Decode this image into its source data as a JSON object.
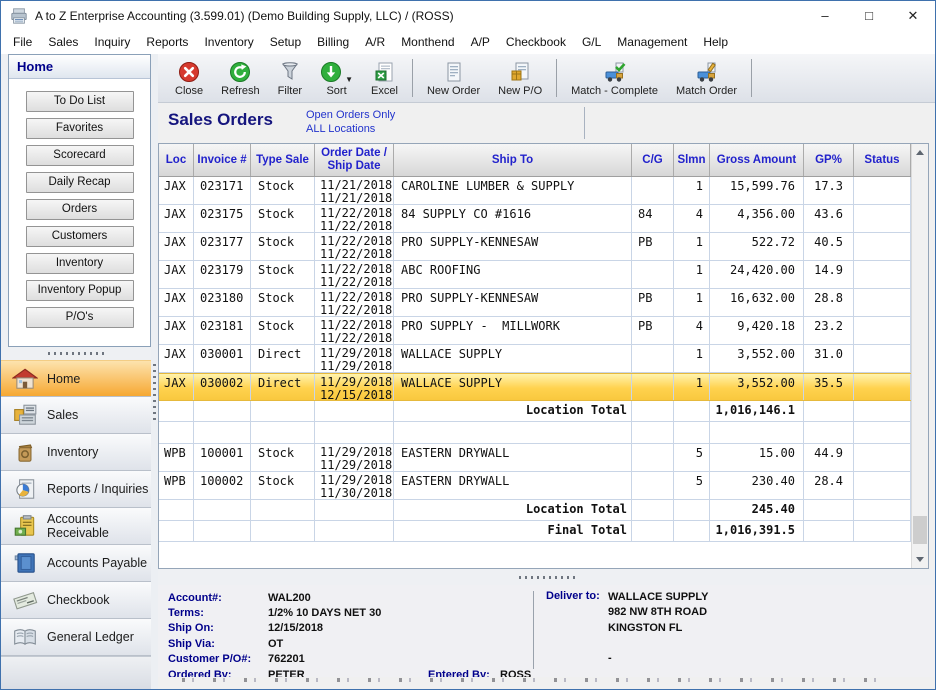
{
  "window": {
    "title": "A to Z Enterprise Accounting (3.599.01) (Demo Building Supply, LLC) / (ROSS)",
    "controls": {
      "minimize": "–",
      "maximize": "□",
      "close": "✕"
    }
  },
  "menubar": {
    "items": [
      "File",
      "Sales",
      "Inquiry",
      "Reports",
      "Inventory",
      "Setup",
      "Billing",
      "A/R",
      "Monthend",
      "A/P",
      "Checkbook",
      "G/L",
      "Management",
      "Help"
    ]
  },
  "toolbar": {
    "groups": [
      [
        {
          "label": "Close",
          "icon": "close-icon"
        },
        {
          "label": "Refresh",
          "icon": "refresh-icon"
        },
        {
          "label": "Filter",
          "icon": "filter-icon"
        },
        {
          "label": "Sort",
          "icon": "sort-icon",
          "dropdown": true
        },
        {
          "label": "Excel",
          "icon": "excel-icon"
        }
      ],
      [
        {
          "label": "New Order",
          "icon": "new-order-icon"
        },
        {
          "label": "New P/O",
          "icon": "new-po-icon"
        }
      ],
      [
        {
          "label": "Match - Complete",
          "icon": "match-complete-icon"
        },
        {
          "label": "Match Order",
          "icon": "match-order-icon"
        }
      ]
    ]
  },
  "sidebar": {
    "panel_title": "Home",
    "quick_buttons": [
      "To Do List",
      "Favorites",
      "Scorecard",
      "Daily Recap",
      "Orders",
      "Customers",
      "Inventory",
      "Inventory Popup",
      "P/O's"
    ],
    "nav_items": [
      {
        "label": "Home",
        "icon": "home-icon",
        "selected": true
      },
      {
        "label": "Sales",
        "icon": "sales-icon",
        "selected": false
      },
      {
        "label": "Inventory",
        "icon": "inventory-icon",
        "selected": false
      },
      {
        "label": "Reports / Inquiries",
        "icon": "reports-icon",
        "selected": false
      },
      {
        "label": "Accounts Receivable",
        "icon": "accounts-receivable-icon",
        "selected": false
      },
      {
        "label": "Accounts Payable",
        "icon": "accounts-payable-icon",
        "selected": false
      },
      {
        "label": "Checkbook",
        "icon": "checkbook-icon",
        "selected": false
      },
      {
        "label": "General Ledger",
        "icon": "general-ledger-icon",
        "selected": false
      }
    ]
  },
  "page": {
    "title": "Sales Orders",
    "filter_links": [
      "Open Orders Only",
      "ALL Locations"
    ]
  },
  "table": {
    "columns": [
      "Loc",
      "Invoice #",
      "Type Sale",
      "Order Date /\nShip Date",
      "Ship To",
      "C/G",
      "Slmn",
      "Gross Amount",
      "GP%",
      "Status"
    ],
    "rows": [
      {
        "type": "data",
        "loc": "JAX",
        "invoice": "023171",
        "sale_type": "Stock",
        "order_date": "11/21/2018",
        "ship_date": "11/21/2018",
        "ship_to": "CAROLINE LUMBER & SUPPLY",
        "cg": "",
        "slmn": "1",
        "gross": "15,599.76",
        "gp": "17.3",
        "status": "",
        "selected": false
      },
      {
        "type": "data",
        "loc": "JAX",
        "invoice": "023175",
        "sale_type": "Stock",
        "order_date": "11/22/2018",
        "ship_date": "11/22/2018",
        "ship_to": "84 SUPPLY CO #1616",
        "cg": "84",
        "slmn": "4",
        "gross": "4,356.00",
        "gp": "43.6",
        "status": "",
        "selected": false
      },
      {
        "type": "data",
        "loc": "JAX",
        "invoice": "023177",
        "sale_type": "Stock",
        "order_date": "11/22/2018",
        "ship_date": "11/22/2018",
        "ship_to": "PRO SUPPLY-KENNESAW",
        "cg": "PB",
        "slmn": "1",
        "gross": "522.72",
        "gp": "40.5",
        "status": "",
        "selected": false
      },
      {
        "type": "data",
        "loc": "JAX",
        "invoice": "023179",
        "sale_type": "Stock",
        "order_date": "11/22/2018",
        "ship_date": "11/22/2018",
        "ship_to": "ABC ROOFING",
        "cg": "",
        "slmn": "1",
        "gross": "24,420.00",
        "gp": "14.9",
        "status": "",
        "selected": false
      },
      {
        "type": "data",
        "loc": "JAX",
        "invoice": "023180",
        "sale_type": "Stock",
        "order_date": "11/22/2018",
        "ship_date": "11/22/2018",
        "ship_to": "PRO SUPPLY-KENNESAW",
        "cg": "PB",
        "slmn": "1",
        "gross": "16,632.00",
        "gp": "28.8",
        "status": "",
        "selected": false
      },
      {
        "type": "data",
        "loc": "JAX",
        "invoice": "023181",
        "sale_type": "Stock",
        "order_date": "11/22/2018",
        "ship_date": "11/22/2018",
        "ship_to": "PRO SUPPLY -  MILLWORK",
        "cg": "PB",
        "slmn": "4",
        "gross": "9,420.18",
        "gp": "23.2",
        "status": "",
        "selected": false
      },
      {
        "type": "data",
        "loc": "JAX",
        "invoice": "030001",
        "sale_type": "Direct",
        "order_date": "11/29/2018",
        "ship_date": "11/29/2018",
        "ship_to": "WALLACE SUPPLY",
        "cg": "",
        "slmn": "1",
        "gross": "3,552.00",
        "gp": "31.0",
        "status": "",
        "selected": false
      },
      {
        "type": "data",
        "loc": "JAX",
        "invoice": "030002",
        "sale_type": "Direct",
        "order_date": "11/29/2018",
        "ship_date": "12/15/2018",
        "ship_to": "WALLACE SUPPLY",
        "cg": "",
        "slmn": "1",
        "gross": "3,552.00",
        "gp": "35.5",
        "status": "",
        "selected": true
      },
      {
        "type": "total",
        "label": "Location Total",
        "gross": "1,016,146.1"
      },
      {
        "type": "blank"
      },
      {
        "type": "data",
        "loc": "WPB",
        "invoice": "100001",
        "sale_type": "Stock",
        "order_date": "11/29/2018",
        "ship_date": "11/29/2018",
        "ship_to": "EASTERN DRYWALL",
        "cg": "",
        "slmn": "5",
        "gross": "15.00",
        "gp": "44.9",
        "status": "",
        "selected": false
      },
      {
        "type": "data",
        "loc": "WPB",
        "invoice": "100002",
        "sale_type": "Stock",
        "order_date": "11/29/2018",
        "ship_date": "11/30/2018",
        "ship_to": "EASTERN DRYWALL",
        "cg": "",
        "slmn": "5",
        "gross": "230.40",
        "gp": "28.4",
        "status": "",
        "selected": false
      },
      {
        "type": "total",
        "label": "Location Total",
        "gross": "245.40"
      },
      {
        "type": "total",
        "label": "Final Total",
        "gross": "1,016,391.5"
      }
    ]
  },
  "details": {
    "fields": [
      {
        "label": "Account#:",
        "value": "WAL200"
      },
      {
        "label": "Terms:",
        "value": "1/2% 10 DAYS NET 30"
      },
      {
        "label": "Ship On:",
        "value": "12/15/2018"
      },
      {
        "label": "Ship Via:",
        "value": "OT"
      },
      {
        "label": "Customer P/O#:",
        "value": "762201"
      },
      {
        "label": "Ordered By:",
        "value": "PETER",
        "extra_label": "Entered By:",
        "extra_value": "ROSS"
      }
    ],
    "deliver_to_label": "Deliver to:",
    "deliver_to_lines": [
      "WALLACE SUPPLY",
      "982 NW 8TH ROAD",
      "KINGSTON FL"
    ],
    "deliver_to_extra": "-"
  },
  "colors": {
    "accent_navy": "#00008b",
    "link_blue": "#2233cc",
    "header_text_blue": "#2222cc",
    "selected_row_gold": "#ffd24e",
    "nav_selected_orange": "#f6a832",
    "window_border_blue": "#3f71ad"
  }
}
